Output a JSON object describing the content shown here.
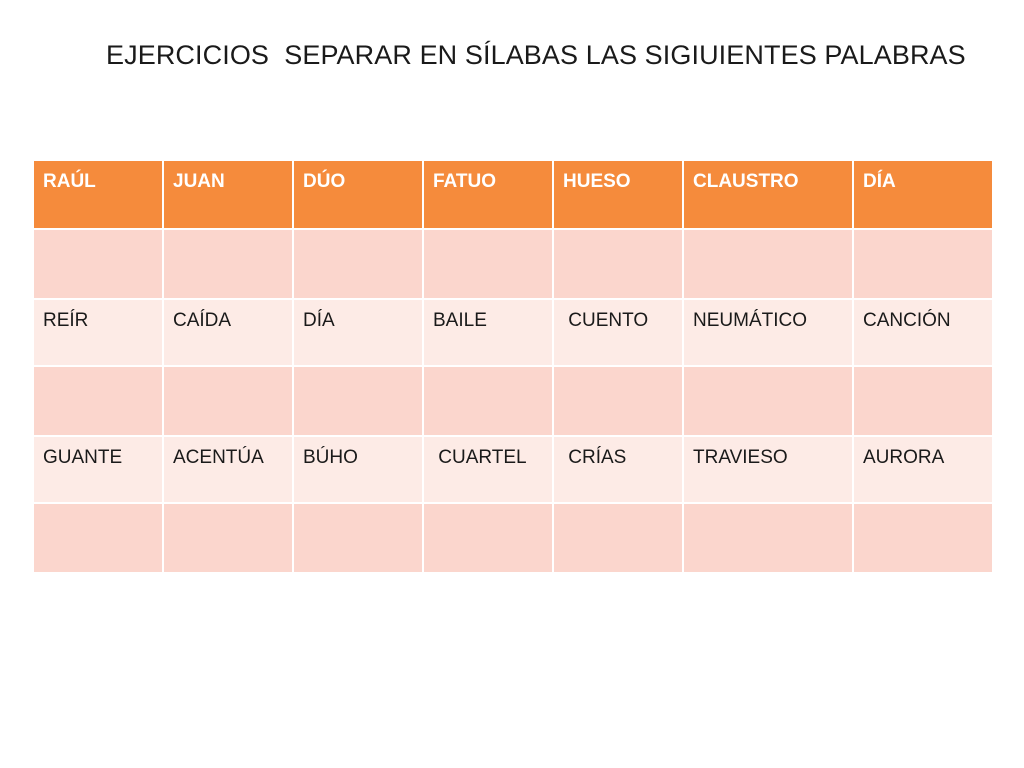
{
  "title": "EJERCICIOS  SEPARAR EN SÍLABAS LAS SIGIUIENTES PALABRAS",
  "colors": {
    "header_bg": "#f58b3c",
    "blank_row_bg": "#fbd6cd",
    "word_row_bg": "#fdebe6"
  },
  "table": {
    "header": [
      "RAÚL",
      "JUAN",
      "DÚO",
      "FATUO",
      "HUESO",
      "CLAUSTRO",
      "DÍA"
    ],
    "row1": [
      "REÍR",
      "CAÍDA",
      "DÍA",
      "BAILE",
      " CUENTO",
      "NEUMÁTICO",
      "CANCIÓN"
    ],
    "row2": [
      "GUANTE",
      "ACENTÚA",
      "BÚHO",
      " CUARTEL",
      " CRÍAS",
      "TRAVIESO",
      "AURORA"
    ]
  }
}
